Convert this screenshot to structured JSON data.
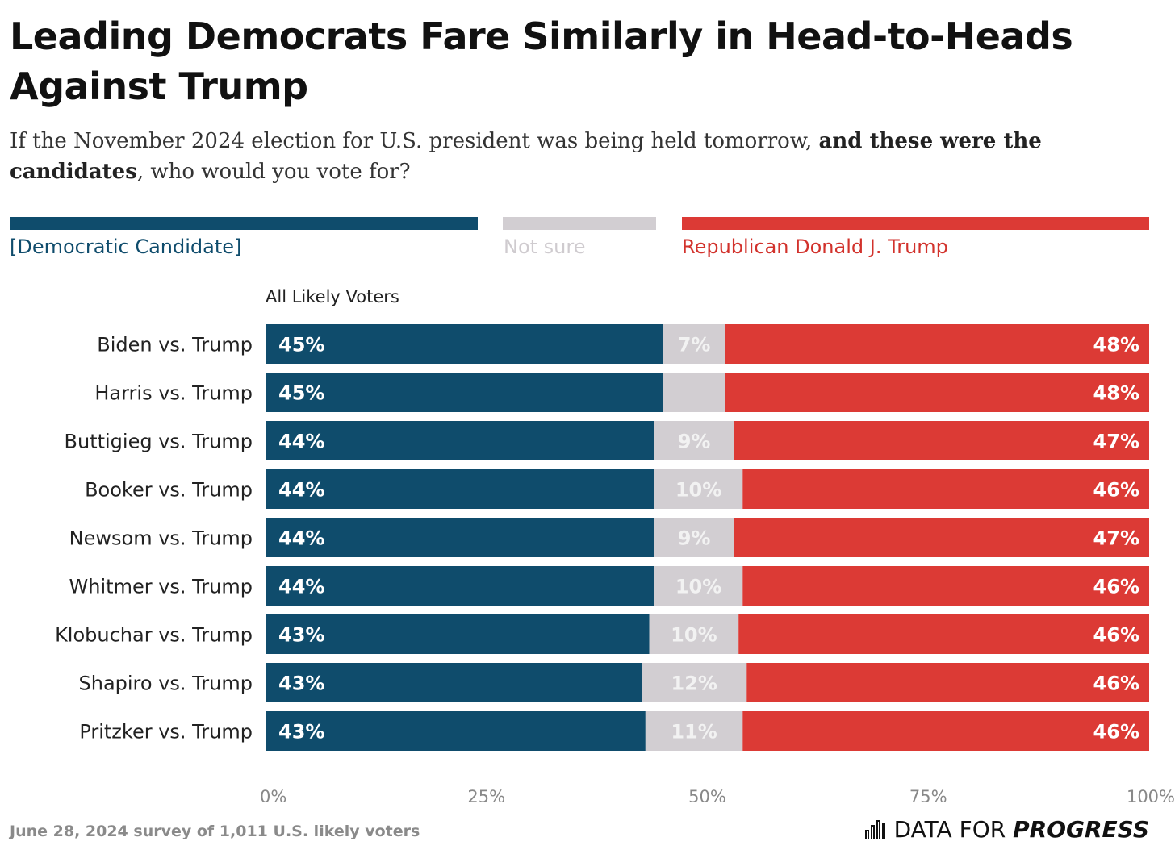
{
  "title": "Leading Democrats Fare Similarly in Head-to-Heads Against Trump",
  "subtitle": {
    "part1": "If the November 2024 election for U.S. president was being held tomorrow, ",
    "bold": "and these were the candidates",
    "part2": ", who would you vote for?"
  },
  "legend": [
    {
      "label": "[Democratic Candidate]",
      "color": "#0f4c6c"
    },
    {
      "label": "Not sure",
      "color": "#d2ced2"
    },
    {
      "label": "Republican Donald J. Trump",
      "color": "#dc3a35"
    }
  ],
  "footnote": "June 28, 2024 survey of 1,011 U.S. likely voters",
  "brand": {
    "part1": "DATA FOR ",
    "part2": "PROGRESS",
    "icon": "bar-chart-icon"
  },
  "colors": {
    "dem": "#0f4c6c",
    "unsure": "#d2ced2",
    "rep": "#dc3a35"
  },
  "chart_data": {
    "type": "bar",
    "orientation": "horizontal",
    "stacked": true,
    "group_label": "All Likely Voters",
    "categories": [
      "Biden vs. Trump",
      "Harris vs. Trump",
      "Buttigieg vs. Trump",
      "Booker vs. Trump",
      "Newsom vs. Trump",
      "Whitmer vs. Trump",
      "Klobuchar vs. Trump",
      "Shapiro vs. Trump",
      "Pritzker vs. Trump"
    ],
    "series": [
      {
        "name": "[Democratic Candidate]",
        "values": [
          45,
          45,
          44,
          44,
          44,
          44,
          43,
          43,
          43
        ],
        "labels": [
          "45%",
          "45%",
          "44%",
          "44%",
          "44%",
          "44%",
          "43%",
          "43%",
          "43%"
        ]
      },
      {
        "name": "Not sure",
        "values": [
          7,
          7,
          9,
          10,
          9,
          10,
          10,
          12,
          11
        ],
        "labels": [
          "7%",
          "",
          "9%",
          "10%",
          "9%",
          "10%",
          "10%",
          "12%",
          "11%"
        ]
      },
      {
        "name": "Republican Donald J. Trump",
        "values": [
          48,
          48,
          47,
          46,
          47,
          46,
          46,
          46,
          46
        ],
        "labels": [
          "48%",
          "48%",
          "47%",
          "46%",
          "47%",
          "46%",
          "46%",
          "46%",
          "46%"
        ]
      }
    ],
    "x_ticks": [
      "0%",
      "25%",
      "50%",
      "75%",
      "100%"
    ],
    "xlim": [
      0,
      100
    ],
    "grid": false,
    "legend_position": "top"
  }
}
